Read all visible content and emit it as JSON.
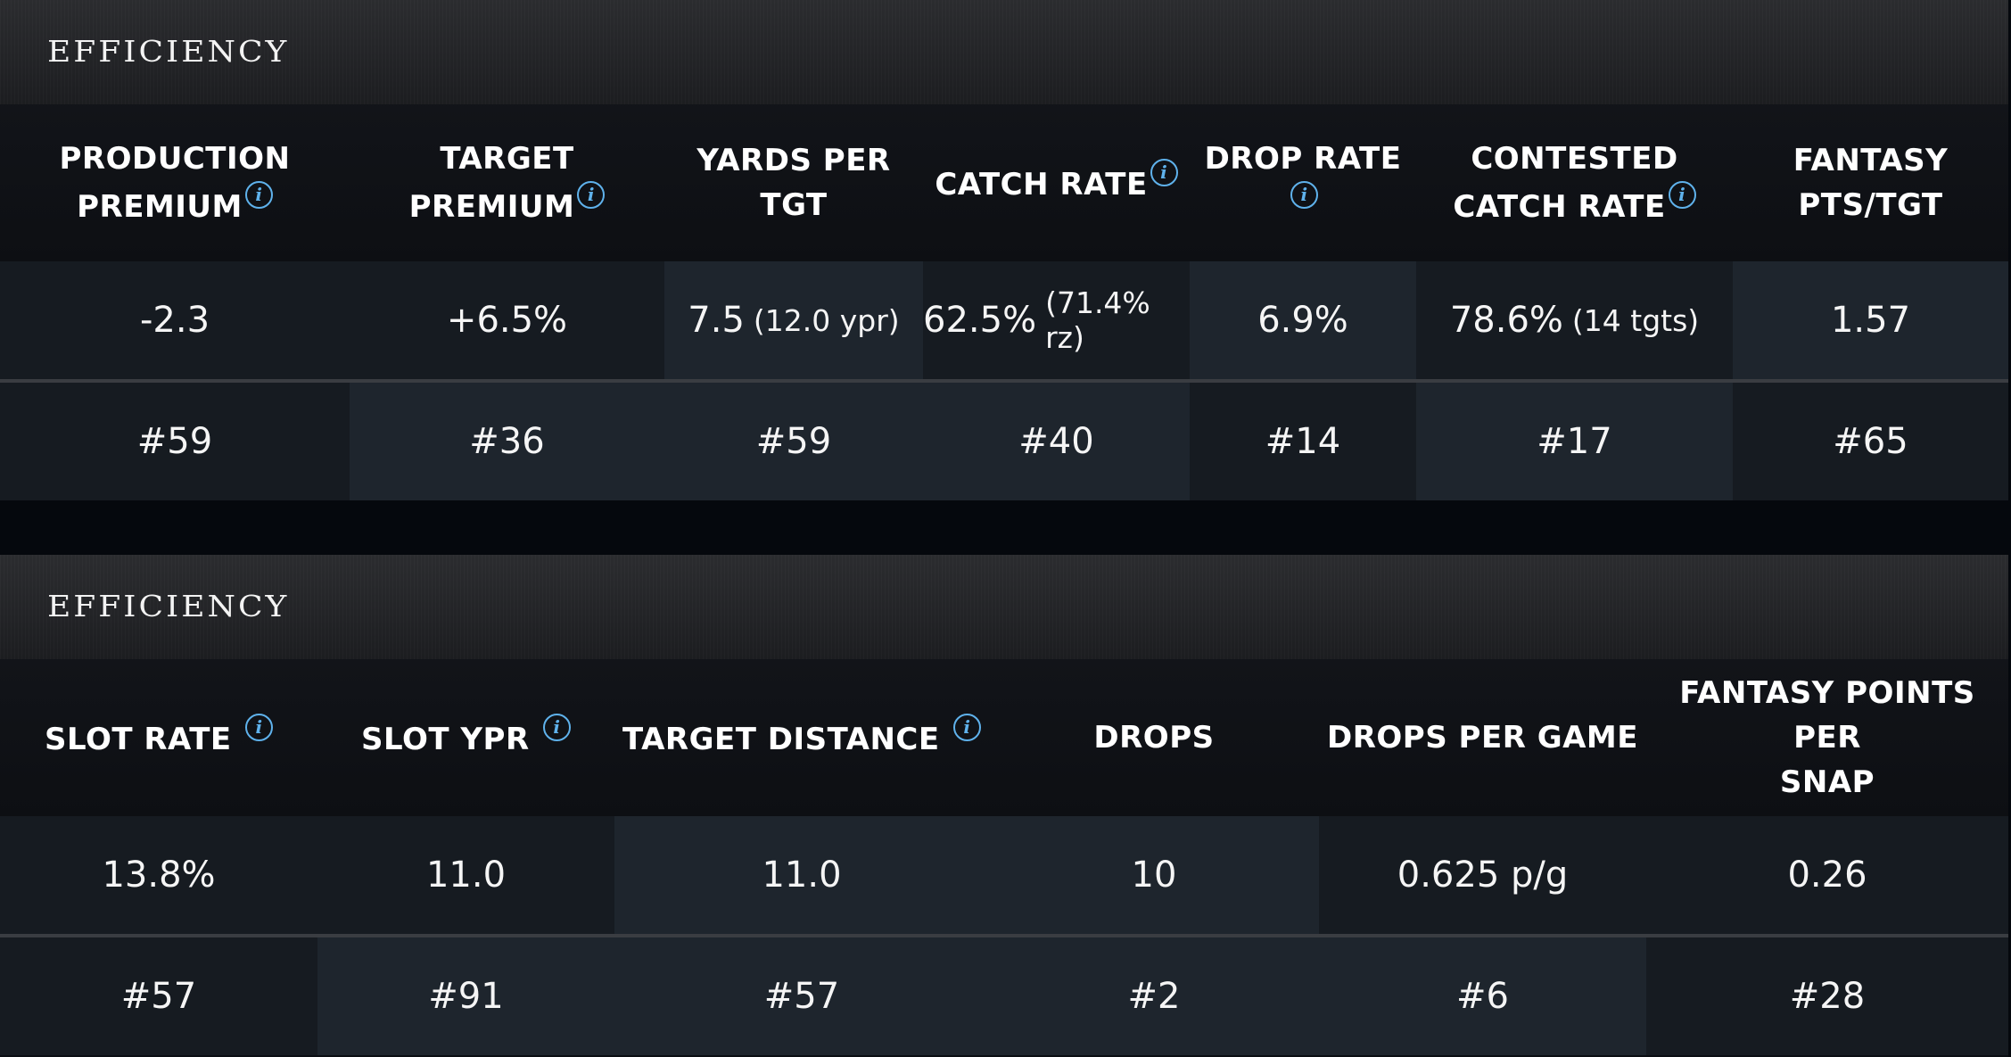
{
  "panel1": {
    "title": "EFFICIENCY",
    "headers": [
      {
        "lines": [
          "PRODUCTION",
          "PREMIUM"
        ],
        "info": true
      },
      {
        "lines": [
          "TARGET PREMIUM"
        ],
        "info": true
      },
      {
        "lines": [
          "YARDS PER TGT"
        ],
        "info": false
      },
      {
        "lines": [
          "CATCH RATE"
        ],
        "info": true
      },
      {
        "lines": [
          "DROP RATE"
        ],
        "info": true
      },
      {
        "lines": [
          "CONTESTED",
          "CATCH RATE"
        ],
        "info": true
      },
      {
        "lines": [
          "FANTASY",
          "PTS/TGT"
        ],
        "info": false
      }
    ],
    "values": [
      {
        "main": "-2.3",
        "sub": ""
      },
      {
        "main": "+6.5%",
        "sub": ""
      },
      {
        "main": "7.5",
        "sub": "(12.0 ypr)"
      },
      {
        "main": "62.5%",
        "sub": "(71.4% rz)"
      },
      {
        "main": "6.9%",
        "sub": ""
      },
      {
        "main": "78.6%",
        "sub": "(14 tgts)"
      },
      {
        "main": "1.57",
        "sub": ""
      }
    ],
    "ranks": [
      "#59",
      "#36",
      "#59",
      "#40",
      "#14",
      "#17",
      "#65"
    ]
  },
  "panel2": {
    "title": "EFFICIENCY",
    "headers": [
      {
        "lines": [
          "SLOT RATE"
        ],
        "info": true
      },
      {
        "lines": [
          "SLOT YPR"
        ],
        "info": true
      },
      {
        "lines": [
          "TARGET DISTANCE"
        ],
        "info": true
      },
      {
        "lines": [
          "DROPS"
        ],
        "info": false
      },
      {
        "lines": [
          "DROPS PER GAME"
        ],
        "info": false
      },
      {
        "lines": [
          "FANTASY POINTS PER",
          "SNAP"
        ],
        "info": false
      }
    ],
    "values": [
      "13.8%",
      "11.0",
      "11.0",
      "10",
      "0.625 p/g",
      "0.26"
    ],
    "ranks": [
      "#57",
      "#91",
      "#57",
      "#2",
      "#6",
      "#28"
    ]
  },
  "icons": {
    "info": "info-icon",
    "info_glyph": "i"
  },
  "colors": {
    "accent": "#5fb2ec",
    "background": "#0b0e13",
    "header_bar": "#26272a"
  }
}
